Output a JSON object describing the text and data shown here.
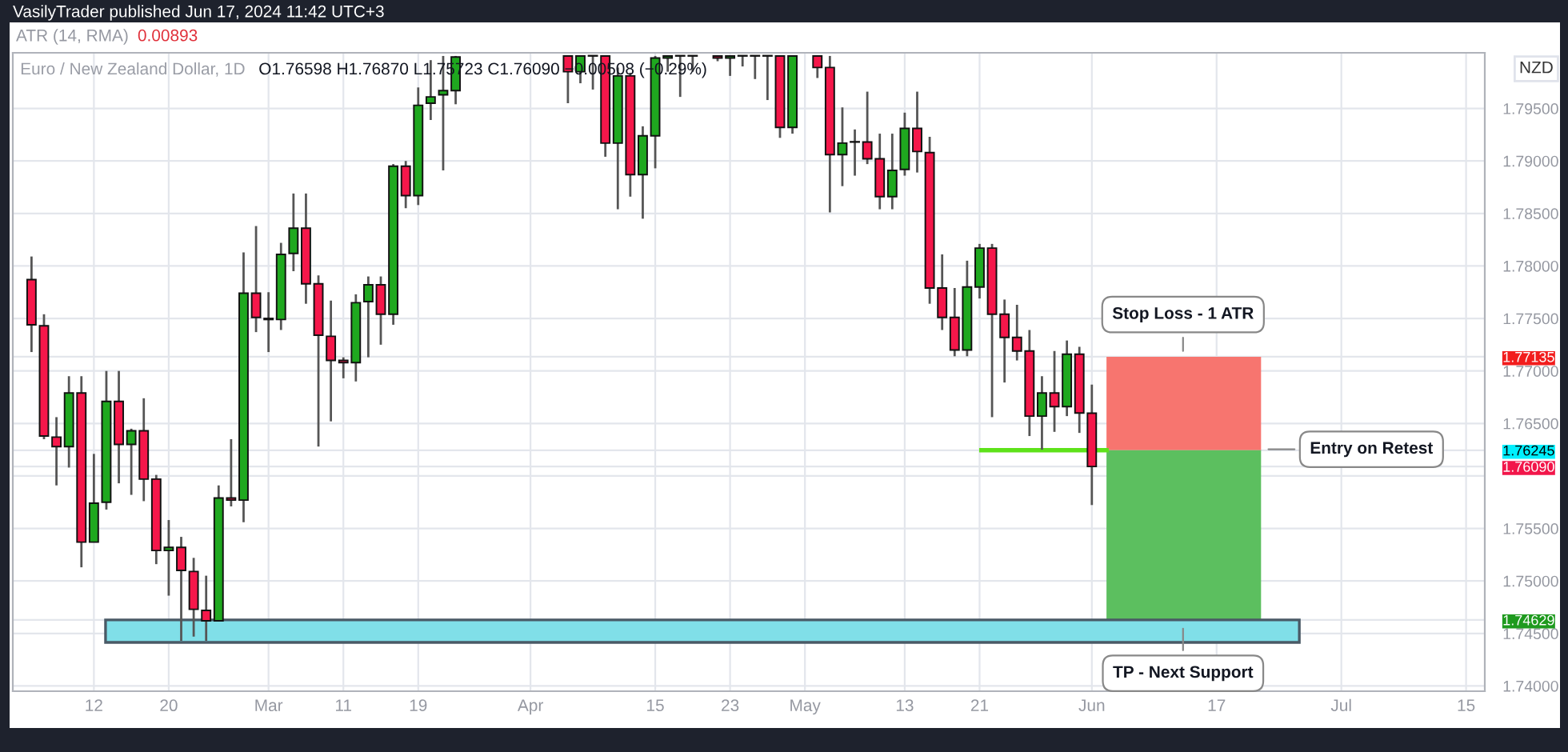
{
  "chart_data": {
    "type": "candlestick",
    "title": "Euro / New Zealand Dollar, 1D",
    "subtitle": "O1.76598 H1.76870 L1.75723 C1.76090 −0.00508 (−0.29%)",
    "ylabel": "NZD",
    "annotations": [
      "VasilyTrader published Jun 17, 2024 11:42 UTC+3",
      "ATR (14, RMA)",
      "0.00893",
      "Stop Loss - 1 ATR",
      "Entry on Retest",
      "TP - Next Support"
    ],
    "categories": [
      null,
      null,
      null,
      null,
      null,
      null,
      "12",
      null,
      null,
      null,
      null,
      null,
      "20",
      null,
      null,
      null,
      null,
      null,
      null,
      null,
      "Mar",
      null,
      null,
      null,
      null,
      null,
      "11",
      null,
      null,
      null,
      null,
      null,
      "19",
      null,
      null,
      null,
      null,
      null,
      null,
      null,
      null,
      "Apr",
      null,
      null,
      null,
      null,
      null,
      null,
      null,
      null,
      null,
      "15",
      null,
      null,
      null,
      null,
      null,
      "23",
      null,
      null,
      null,
      null,
      null,
      "May",
      null,
      null,
      null,
      null,
      null,
      null,
      null,
      "13",
      null,
      null,
      null,
      null,
      null,
      "21",
      null,
      null,
      null,
      null,
      null,
      null,
      null,
      null,
      "Jun",
      null,
      null,
      null,
      null,
      null,
      null,
      null,
      null,
      null,
      "17",
      null,
      null,
      null,
      null,
      null,
      null,
      null,
      null,
      null,
      "Jul",
      null,
      null,
      null,
      null,
      null,
      null,
      null,
      null,
      null,
      "15",
      null
    ],
    "ohlc": [
      null,
      [
        1.7787,
        1.7809,
        1.7718,
        1.7744
      ],
      [
        1.7743,
        1.7754,
        1.7635,
        1.7638
      ],
      [
        1.7637,
        1.7656,
        1.7591,
        1.7628
      ],
      [
        1.7628,
        1.7695,
        1.7608,
        1.7679
      ],
      [
        1.7679,
        1.7695,
        1.7513,
        1.7537
      ],
      [
        1.7537,
        1.7621,
        1.7537,
        1.7574
      ],
      [
        1.7575,
        1.77,
        1.7568,
        1.7671
      ],
      [
        1.7671,
        1.77,
        1.7593,
        1.763
      ],
      [
        1.763,
        1.7645,
        1.7582,
        1.7643
      ],
      [
        1.7643,
        1.7674,
        1.7576,
        1.7597
      ],
      [
        1.7597,
        1.7601,
        1.7516,
        1.7529
      ],
      [
        1.7529,
        1.7558,
        1.7486,
        1.7532
      ],
      [
        1.7532,
        1.7542,
        1.7443,
        1.751
      ],
      [
        1.7509,
        1.7522,
        1.7447,
        1.7473
      ],
      [
        1.7472,
        1.7505,
        1.7443,
        1.7462
      ],
      [
        1.7462,
        1.7591,
        1.7462,
        1.7579
      ],
      [
        1.7579,
        1.7635,
        1.7571,
        1.7577
      ],
      [
        1.7577,
        1.7813,
        1.7556,
        1.7774
      ],
      [
        1.7774,
        1.7838,
        1.7737,
        1.7751
      ],
      [
        1.775,
        1.7775,
        1.7718,
        1.7749
      ],
      [
        1.7749,
        1.7822,
        1.7739,
        1.7811
      ],
      [
        1.7812,
        1.7869,
        1.7795,
        1.7836
      ],
      [
        1.7836,
        1.7869,
        1.7764,
        1.7783
      ],
      [
        1.7783,
        1.7791,
        1.7628,
        1.7734
      ],
      [
        1.7733,
        1.7767,
        1.7652,
        1.771
      ],
      [
        1.771,
        1.7713,
        1.7693,
        1.7708
      ],
      [
        1.7708,
        1.7773,
        1.769,
        1.7765
      ],
      [
        1.7766,
        1.779,
        1.7713,
        1.7782
      ],
      [
        1.7782,
        1.779,
        1.7725,
        1.7754
      ],
      [
        1.7754,
        1.7897,
        1.7744,
        1.7895
      ],
      [
        1.7895,
        1.79,
        1.7855,
        1.7867
      ],
      [
        1.7867,
        1.797,
        1.7858,
        1.7953
      ],
      [
        1.7955,
        1.7996,
        1.7939,
        1.7961
      ],
      [
        1.7963,
        1.8,
        1.7891,
        1.7967
      ],
      [
        1.7967,
        1.8,
        1.7954,
        1.7999
      ],
      null,
      null,
      null,
      null,
      null,
      null,
      null,
      null,
      [
        1.8,
        1.8,
        1.7955,
        1.7985
      ],
      [
        1.7985,
        1.8,
        1.7974,
        1.8
      ],
      [
        1.8,
        1.8,
        1.7968,
        1.8
      ],
      [
        1.8,
        1.8,
        1.7904,
        1.7917
      ],
      [
        1.7917,
        1.7989,
        1.7854,
        1.7981
      ],
      [
        1.7981,
        1.7984,
        1.7866,
        1.7887
      ],
      [
        1.7887,
        1.7933,
        1.7845,
        1.7924
      ],
      [
        1.7924,
        1.8,
        1.7893,
        1.7998
      ],
      [
        1.7998,
        1.8,
        1.7985,
        1.8
      ],
      [
        1.8,
        1.8,
        1.7961,
        1.8
      ],
      [
        1.8,
        1.8,
        1.7985,
        1.8
      ],
      null,
      [
        1.8,
        1.8,
        1.7995,
        1.7998
      ],
      [
        1.7998,
        1.8,
        1.7981,
        1.8
      ],
      [
        1.8,
        1.8,
        1.799,
        1.8
      ],
      [
        1.8,
        1.8,
        1.7978,
        1.8
      ],
      [
        1.8,
        1.8,
        1.7958,
        1.8
      ],
      [
        1.8,
        1.8,
        1.7922,
        1.7932
      ],
      [
        1.7932,
        1.8,
        1.7926,
        1.8
      ],
      null,
      [
        1.8,
        1.8,
        1.7979,
        1.7989
      ],
      [
        1.7989,
        1.8,
        1.7851,
        1.7906
      ],
      [
        1.7906,
        1.7951,
        1.7876,
        1.7917
      ],
      [
        1.7918,
        1.793,
        1.7886,
        1.7918
      ],
      [
        1.7918,
        1.7966,
        1.7897,
        1.7902
      ],
      [
        1.7902,
        1.7926,
        1.7854,
        1.7866
      ],
      [
        1.7866,
        1.7926,
        1.7854,
        1.7891
      ],
      [
        1.7892,
        1.7946,
        1.7886,
        1.7931
      ],
      [
        1.7931,
        1.7966,
        1.7889,
        1.7909
      ],
      [
        1.7908,
        1.7923,
        1.7764,
        1.7779
      ],
      [
        1.7779,
        1.7811,
        1.7739,
        1.7751
      ],
      [
        1.7751,
        1.7779,
        1.7714,
        1.772
      ],
      [
        1.772,
        1.7805,
        1.7714,
        1.778
      ],
      [
        1.778,
        1.7821,
        1.7769,
        1.7817
      ],
      [
        1.7817,
        1.7821,
        1.7656,
        1.7754
      ],
      [
        1.7754,
        1.7768,
        1.7689,
        1.7732
      ],
      [
        1.7732,
        1.7763,
        1.771,
        1.7719
      ],
      [
        1.7719,
        1.7739,
        1.7638,
        1.7657
      ],
      [
        1.7657,
        1.7695,
        1.7625,
        1.7679
      ],
      [
        1.7679,
        1.7719,
        1.7642,
        1.7666
      ],
      [
        1.7666,
        1.7729,
        1.7657,
        1.7716
      ],
      [
        1.7716,
        1.7723,
        1.7641,
        1.766
      ],
      [
        1.76598,
        1.7687,
        1.75723,
        1.7609
      ],
      null,
      null,
      null,
      null,
      null,
      null,
      null,
      null,
      null,
      null,
      null,
      null,
      null,
      null,
      null,
      null,
      null,
      null,
      null,
      null,
      null,
      null,
      null,
      null,
      null,
      null,
      null,
      null,
      null,
      null,
      null
    ],
    "bands": [
      {
        "axis": "y",
        "from": 1.76245,
        "to": 1.77135,
        "color": "#f7756f"
      },
      {
        "axis": "y",
        "from": 1.74629,
        "to": 1.76245,
        "color": "#5cbf5f"
      },
      {
        "axis": "y",
        "from": 1.74415,
        "to": 1.74629,
        "color": "#80dfe8"
      }
    ],
    "ref_lines": [
      {
        "axis": "y",
        "value": 1.76245,
        "color": "#5ee21a"
      }
    ],
    "ylim": [
      1.7395,
      1.8003
    ],
    "yticks": [
      {
        "value": 1.74,
        "label": "1.74000"
      },
      {
        "value": 1.745,
        "label": "1.74500"
      },
      {
        "value": 1.75,
        "label": "1.75000"
      },
      {
        "value": 1.755,
        "label": "1.75500"
      },
      {
        "value": 1.76,
        "label": null
      },
      {
        "value": 1.765,
        "label": "1.76500"
      },
      {
        "value": 1.77,
        "label": "1.77000"
      },
      {
        "value": 1.775,
        "label": "1.77500"
      },
      {
        "value": 1.78,
        "label": "1.78000"
      },
      {
        "value": 1.785,
        "label": "1.78500"
      },
      {
        "value": 1.79,
        "label": "1.79000"
      },
      {
        "value": 1.795,
        "label": "1.79500"
      },
      {
        "value": 1.77135,
        "label": "1.77135"
      },
      {
        "value": 1.76245,
        "label": "1.76245"
      },
      {
        "value": 1.7609,
        "label": "1.76090"
      },
      {
        "value": 1.74629,
        "label": "1.74629"
      }
    ],
    "grid": true
  }
}
